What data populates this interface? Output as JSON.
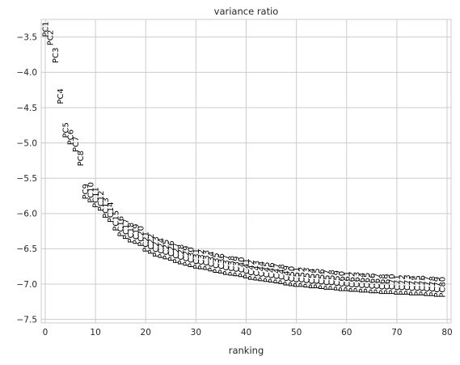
{
  "chart_data": {
    "type": "scatter",
    "title": "variance ratio",
    "xlabel": "ranking",
    "ylabel": "",
    "xlim": [
      -0.8,
      80.8
    ],
    "ylim": [
      -7.55,
      -3.25
    ],
    "xticks": [
      0,
      10,
      20,
      30,
      40,
      50,
      60,
      70,
      80
    ],
    "yticks": [
      -3.5,
      -4.0,
      -4.5,
      -5.0,
      -5.5,
      -6.0,
      -6.5,
      -7.0,
      -7.5
    ],
    "ytick_labels": [
      "−3.5",
      "−4.0",
      "−4.5",
      "−5.0",
      "−5.5",
      "−6.0",
      "−6.5",
      "−7.0",
      "−7.5"
    ],
    "grid": true,
    "labels": [
      "PC1",
      "PC2",
      "PC3",
      "PC4",
      "PC5",
      "PC6",
      "PC7",
      "PC8",
      "PC9",
      "PC10",
      "PC11",
      "PC12",
      "PC13",
      "PC14",
      "PC15",
      "PC16",
      "PC17",
      "PC18",
      "PC19",
      "PC20",
      "PC21",
      "PC22",
      "PC23",
      "PC24",
      "PC25",
      "PC26",
      "PC27",
      "PC28",
      "PC29",
      "PC30",
      "PC31",
      "PC32",
      "PC33",
      "PC34",
      "PC35",
      "PC36",
      "PC37",
      "PC38",
      "PC39",
      "PC40",
      "PC41",
      "PC42",
      "PC43",
      "PC44",
      "PC45",
      "PC46",
      "PC47",
      "PC48",
      "PC49",
      "PC50",
      "PC51",
      "PC52",
      "PC53",
      "PC54",
      "PC55",
      "PC56",
      "PC57",
      "PC58",
      "PC59",
      "PC60",
      "PC61",
      "PC62",
      "PC63",
      "PC64",
      "PC65",
      "PC66",
      "PC67",
      "PC68",
      "PC69",
      "PC70",
      "PC71",
      "PC72",
      "PC73",
      "PC74",
      "PC75",
      "PC76",
      "PC77",
      "PC78",
      "PC79",
      "PC80"
    ],
    "x": [
      0,
      1,
      2,
      3,
      4,
      5,
      6,
      7,
      8,
      9,
      10,
      11,
      12,
      13,
      14,
      15,
      16,
      17,
      18,
      19,
      20,
      21,
      22,
      23,
      24,
      25,
      26,
      27,
      28,
      29,
      30,
      31,
      32,
      33,
      34,
      35,
      36,
      37,
      38,
      39,
      40,
      41,
      42,
      43,
      44,
      45,
      46,
      47,
      48,
      49,
      50,
      51,
      52,
      53,
      54,
      55,
      56,
      57,
      58,
      59,
      60,
      61,
      62,
      63,
      64,
      65,
      66,
      67,
      68,
      69,
      70,
      71,
      72,
      73,
      74,
      75,
      76,
      77,
      78,
      79
    ],
    "y": [
      -3.5,
      -3.62,
      -3.87,
      -4.45,
      -4.93,
      -5.03,
      -5.13,
      -5.33,
      -5.8,
      -5.85,
      -5.92,
      -5.97,
      -6.07,
      -6.13,
      -6.25,
      -6.33,
      -6.37,
      -6.42,
      -6.44,
      -6.47,
      -6.55,
      -6.58,
      -6.62,
      -6.64,
      -6.66,
      -6.68,
      -6.71,
      -6.73,
      -6.75,
      -6.77,
      -6.79,
      -6.8,
      -6.81,
      -6.83,
      -6.85,
      -6.86,
      -6.88,
      -6.89,
      -6.9,
      -6.91,
      -6.93,
      -6.95,
      -6.96,
      -6.97,
      -6.98,
      -6.99,
      -7.0,
      -7.01,
      -7.03,
      -7.04,
      -7.05,
      -7.05,
      -7.06,
      -7.07,
      -7.07,
      -7.08,
      -7.09,
      -7.09,
      -7.1,
      -7.11,
      -7.11,
      -7.12,
      -7.12,
      -7.13,
      -7.13,
      -7.14,
      -7.14,
      -7.15,
      -7.15,
      -7.15,
      -7.16,
      -7.16,
      -7.16,
      -7.17,
      -7.17,
      -7.17,
      -7.18,
      -7.18,
      -7.19,
      -7.19
    ]
  },
  "colors": {
    "background": "#ffffff",
    "grid": "#cccccc",
    "frame": "#cccccc",
    "text": "#262626",
    "labels": "#000000"
  }
}
